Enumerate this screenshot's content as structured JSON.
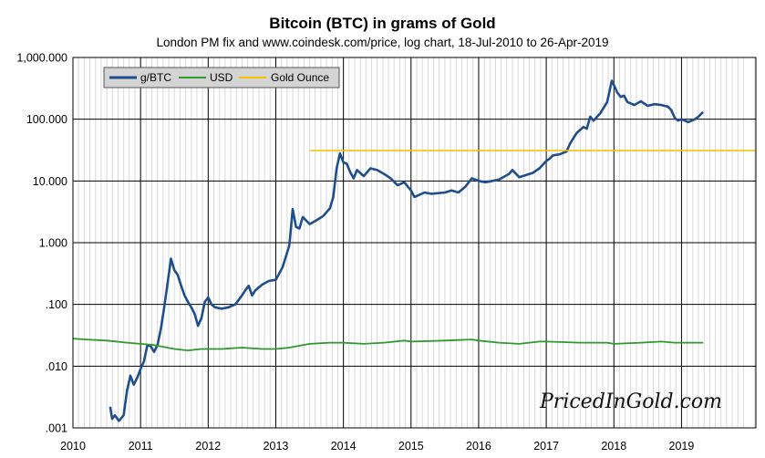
{
  "chart_data": {
    "type": "line",
    "title": "Bitcoin (BTC) in grams of Gold",
    "subtitle": "London PM fix and www.coindesk.com/price, log chart, 18-Jul-2010 to 26-Apr-2019",
    "xlabel": "",
    "ylabel": "",
    "y_scale": "log",
    "ylim": [
      0.001,
      1000
    ],
    "xlim": [
      2010,
      2020.1
    ],
    "grid": true,
    "legend_position": "top-left",
    "x_ticks": [
      "2010",
      "2011",
      "2012",
      "2013",
      "2014",
      "2015",
      "2016",
      "2017",
      "2018",
      "2019"
    ],
    "y_ticks": [
      {
        "value": 1000,
        "label": "1,000.000"
      },
      {
        "value": 100,
        "label": "100.000"
      },
      {
        "value": 10,
        "label": "10.000"
      },
      {
        "value": 1,
        "label": "1.000"
      },
      {
        "value": 0.1,
        "label": ".100"
      },
      {
        "value": 0.01,
        "label": ".010"
      },
      {
        "value": 0.001,
        "label": ".001"
      }
    ],
    "series": [
      {
        "name": "g/BTC",
        "color": "#1f4e8c",
        "points": [
          [
            2010.55,
            0.0022
          ],
          [
            2010.58,
            0.0014
          ],
          [
            2010.62,
            0.0016
          ],
          [
            2010.68,
            0.0013
          ],
          [
            2010.75,
            0.0016
          ],
          [
            2010.8,
            0.004
          ],
          [
            2010.85,
            0.007
          ],
          [
            2010.9,
            0.005
          ],
          [
            2010.95,
            0.0065
          ],
          [
            2011.0,
            0.009
          ],
          [
            2011.05,
            0.012
          ],
          [
            2011.1,
            0.022
          ],
          [
            2011.15,
            0.021
          ],
          [
            2011.2,
            0.017
          ],
          [
            2011.25,
            0.022
          ],
          [
            2011.3,
            0.04
          ],
          [
            2011.35,
            0.09
          ],
          [
            2011.4,
            0.22
          ],
          [
            2011.45,
            0.55
          ],
          [
            2011.5,
            0.36
          ],
          [
            2011.55,
            0.3
          ],
          [
            2011.6,
            0.2
          ],
          [
            2011.65,
            0.14
          ],
          [
            2011.7,
            0.11
          ],
          [
            2011.75,
            0.09
          ],
          [
            2011.8,
            0.07
          ],
          [
            2011.85,
            0.045
          ],
          [
            2011.9,
            0.06
          ],
          [
            2011.95,
            0.11
          ],
          [
            2012.0,
            0.13
          ],
          [
            2012.05,
            0.1
          ],
          [
            2012.1,
            0.09
          ],
          [
            2012.2,
            0.085
          ],
          [
            2012.3,
            0.09
          ],
          [
            2012.4,
            0.1
          ],
          [
            2012.5,
            0.14
          ],
          [
            2012.55,
            0.17
          ],
          [
            2012.6,
            0.2
          ],
          [
            2012.65,
            0.14
          ],
          [
            2012.7,
            0.17
          ],
          [
            2012.8,
            0.21
          ],
          [
            2012.9,
            0.24
          ],
          [
            2013.0,
            0.25
          ],
          [
            2013.1,
            0.4
          ],
          [
            2013.2,
            0.9
          ],
          [
            2013.25,
            3.5
          ],
          [
            2013.3,
            1.8
          ],
          [
            2013.35,
            1.7
          ],
          [
            2013.4,
            2.6
          ],
          [
            2013.5,
            2.0
          ],
          [
            2013.6,
            2.3
          ],
          [
            2013.7,
            2.7
          ],
          [
            2013.8,
            3.6
          ],
          [
            2013.85,
            5.5
          ],
          [
            2013.9,
            16
          ],
          [
            2013.95,
            28
          ],
          [
            2014.0,
            20
          ],
          [
            2014.05,
            19
          ],
          [
            2014.1,
            14
          ],
          [
            2014.15,
            11
          ],
          [
            2014.2,
            15
          ],
          [
            2014.3,
            12
          ],
          [
            2014.4,
            16
          ],
          [
            2014.5,
            15
          ],
          [
            2014.6,
            13
          ],
          [
            2014.7,
            11
          ],
          [
            2014.8,
            8.5
          ],
          [
            2014.9,
            9.5
          ],
          [
            2015.0,
            7
          ],
          [
            2015.05,
            5.5
          ],
          [
            2015.1,
            5.8
          ],
          [
            2015.2,
            6.5
          ],
          [
            2015.3,
            6.2
          ],
          [
            2015.5,
            6.5
          ],
          [
            2015.6,
            7
          ],
          [
            2015.7,
            6.5
          ],
          [
            2015.8,
            8
          ],
          [
            2015.9,
            11
          ],
          [
            2016.0,
            10
          ],
          [
            2016.1,
            9.5
          ],
          [
            2016.3,
            10.5
          ],
          [
            2016.45,
            13
          ],
          [
            2016.5,
            15
          ],
          [
            2016.6,
            11.5
          ],
          [
            2016.8,
            13.5
          ],
          [
            2016.9,
            16
          ],
          [
            2017.0,
            21
          ],
          [
            2017.05,
            23
          ],
          [
            2017.1,
            26
          ],
          [
            2017.2,
            27
          ],
          [
            2017.3,
            30
          ],
          [
            2017.35,
            40
          ],
          [
            2017.45,
            60
          ],
          [
            2017.55,
            75
          ],
          [
            2017.6,
            70
          ],
          [
            2017.65,
            110
          ],
          [
            2017.7,
            95
          ],
          [
            2017.8,
            125
          ],
          [
            2017.9,
            190
          ],
          [
            2017.97,
            420
          ],
          [
            2018.02,
            320
          ],
          [
            2018.05,
            270
          ],
          [
            2018.1,
            230
          ],
          [
            2018.15,
            240
          ],
          [
            2018.2,
            190
          ],
          [
            2018.3,
            170
          ],
          [
            2018.4,
            195
          ],
          [
            2018.5,
            165
          ],
          [
            2018.6,
            175
          ],
          [
            2018.7,
            170
          ],
          [
            2018.8,
            160
          ],
          [
            2018.85,
            140
          ],
          [
            2018.9,
            105
          ],
          [
            2018.95,
            95
          ],
          [
            2019.0,
            100
          ],
          [
            2019.1,
            90
          ],
          [
            2019.2,
            100
          ],
          [
            2019.25,
            110
          ],
          [
            2019.3,
            125
          ],
          [
            2019.32,
            130
          ]
        ]
      },
      {
        "name": "USD",
        "color": "#2e9a2e",
        "points": [
          [
            2010.0,
            0.028
          ],
          [
            2010.2,
            0.027
          ],
          [
            2010.5,
            0.026
          ],
          [
            2010.8,
            0.024
          ],
          [
            2011.0,
            0.023
          ],
          [
            2011.2,
            0.022
          ],
          [
            2011.5,
            0.019
          ],
          [
            2011.7,
            0.018
          ],
          [
            2011.9,
            0.019
          ],
          [
            2012.2,
            0.019
          ],
          [
            2012.5,
            0.02
          ],
          [
            2012.8,
            0.019
          ],
          [
            2013.0,
            0.019
          ],
          [
            2013.2,
            0.02
          ],
          [
            2013.5,
            0.023
          ],
          [
            2013.8,
            0.024
          ],
          [
            2014.0,
            0.024
          ],
          [
            2014.3,
            0.023
          ],
          [
            2014.6,
            0.024
          ],
          [
            2014.9,
            0.026
          ],
          [
            2015.0,
            0.025
          ],
          [
            2015.5,
            0.026
          ],
          [
            2015.9,
            0.027
          ],
          [
            2016.0,
            0.026
          ],
          [
            2016.3,
            0.024
          ],
          [
            2016.6,
            0.023
          ],
          [
            2016.9,
            0.025
          ],
          [
            2017.0,
            0.025
          ],
          [
            2017.5,
            0.024
          ],
          [
            2017.9,
            0.024
          ],
          [
            2018.0,
            0.023
          ],
          [
            2018.4,
            0.024
          ],
          [
            2018.7,
            0.025
          ],
          [
            2018.9,
            0.024
          ],
          [
            2019.0,
            0.024
          ],
          [
            2019.2,
            0.024
          ],
          [
            2019.32,
            0.024
          ]
        ]
      },
      {
        "name": "Gold Ounce",
        "color": "#f2c100",
        "points": [
          [
            2013.5,
            31.1
          ],
          [
            2020.1,
            31.1
          ]
        ]
      }
    ]
  },
  "watermark_text": "PricedInGold.com"
}
